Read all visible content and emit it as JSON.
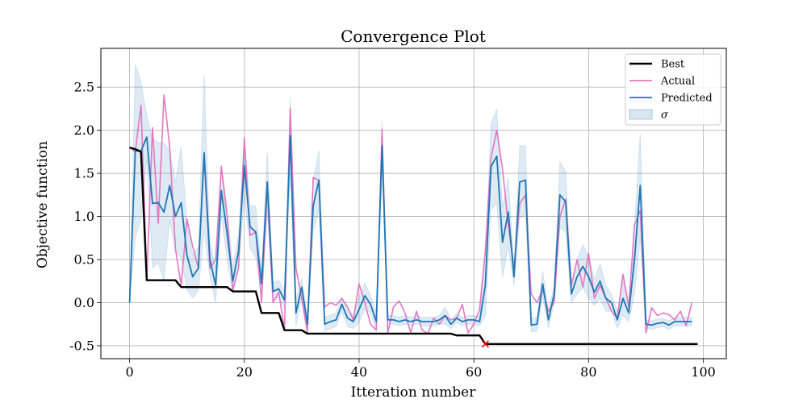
{
  "chart_data": {
    "type": "line",
    "title": "Convergence Plot",
    "xlabel": "Itteration number",
    "ylabel": "Objective function",
    "xlim": [
      -5,
      104
    ],
    "ylim": [
      -0.65,
      2.95
    ],
    "xticks": [
      0,
      20,
      40,
      60,
      80,
      100
    ],
    "yticks": [
      -0.5,
      0.0,
      0.5,
      1.0,
      1.5,
      2.0,
      2.5
    ],
    "grid": true,
    "legend_position": "upper right",
    "colors": {
      "best": "#000000",
      "actual": "#e377c2",
      "predicted": "#1f77b4",
      "sigma": "#1f77b4",
      "best_marker": "#ff0000"
    },
    "legend": [
      {
        "key": "best",
        "label": "Best",
        "kind": "line"
      },
      {
        "key": "actual",
        "label": "Actual",
        "kind": "line"
      },
      {
        "key": "predicted",
        "label": "Predicted",
        "kind": "line"
      },
      {
        "key": "sigma",
        "label": "σ",
        "kind": "patch"
      }
    ],
    "best_point": {
      "x": 62,
      "y": -0.48
    },
    "series": {
      "best": [
        1.8,
        1.78,
        1.75,
        0.26,
        0.26,
        0.26,
        0.26,
        0.26,
        0.26,
        0.18,
        0.18,
        0.18,
        0.18,
        0.18,
        0.18,
        0.18,
        0.18,
        0.18,
        0.13,
        0.13,
        0.13,
        0.13,
        0.13,
        -0.12,
        -0.12,
        -0.12,
        -0.12,
        -0.32,
        -0.32,
        -0.32,
        -0.32,
        -0.36,
        -0.36,
        -0.36,
        -0.36,
        -0.36,
        -0.36,
        -0.36,
        -0.36,
        -0.36,
        -0.36,
        -0.36,
        -0.36,
        -0.36,
        -0.36,
        -0.36,
        -0.36,
        -0.36,
        -0.36,
        -0.36,
        -0.36,
        -0.36,
        -0.36,
        -0.36,
        -0.36,
        -0.36,
        -0.36,
        -0.38,
        -0.38,
        -0.38,
        -0.38,
        -0.38,
        -0.48,
        -0.48,
        -0.48,
        -0.48,
        -0.48,
        -0.48,
        -0.48,
        -0.48,
        -0.48,
        -0.48,
        -0.48,
        -0.48,
        -0.48,
        -0.48,
        -0.48,
        -0.48,
        -0.48,
        -0.48,
        -0.48,
        -0.48,
        -0.48,
        -0.48,
        -0.48,
        -0.48,
        -0.48,
        -0.48,
        -0.48,
        -0.48,
        -0.48,
        -0.48,
        -0.48,
        -0.48,
        -0.48,
        -0.48,
        -0.48,
        -0.48,
        -0.48,
        -0.48
      ],
      "actual": [
        1.8,
        1.75,
        2.29,
        0.27,
        2.03,
        0.92,
        2.41,
        1.8,
        0.62,
        0.2,
        0.97,
        0.65,
        0.4,
        1.7,
        0.4,
        0.5,
        1.58,
        1.0,
        0.15,
        0.4,
        1.91,
        0.78,
        0.82,
        0.0,
        1.3,
        0.0,
        0.12,
        -0.32,
        2.26,
        0.4,
        0.05,
        -0.35,
        1.45,
        1.42,
        -0.05,
        0.0,
        -0.03,
        0.05,
        -0.05,
        -0.2,
        0.22,
        0.0,
        -0.25,
        -0.32,
        2.01,
        -0.35,
        -0.05,
        0.02,
        -0.12,
        -0.35,
        -0.1,
        -0.32,
        -0.36,
        -0.18,
        -0.25,
        -0.15,
        -0.2,
        -0.18,
        -0.02,
        -0.35,
        -0.25,
        -0.08,
        0.6,
        1.68,
        2.0,
        1.55,
        0.9,
        0.4,
        1.15,
        1.25,
        0.1,
        0.0,
        0.15,
        -0.1,
        0.0,
        1.0,
        1.2,
        0.2,
        0.5,
        0.18,
        0.57,
        0.05,
        0.2,
        0.05,
        -0.1,
        -0.18,
        0.33,
        -0.05,
        0.9,
        1.07,
        -0.35,
        -0.06,
        -0.15,
        -0.12,
        -0.14,
        -0.2,
        -0.1,
        -0.27,
        0.0
      ],
      "predicted": [
        0.0,
        1.76,
        1.76,
        1.92,
        1.15,
        1.16,
        1.05,
        1.36,
        1.0,
        1.16,
        0.55,
        0.3,
        0.4,
        1.74,
        0.5,
        0.2,
        1.3,
        0.8,
        0.25,
        0.6,
        1.59,
        0.88,
        0.82,
        0.22,
        1.4,
        0.13,
        0.16,
        0.03,
        1.94,
        -0.12,
        0.18,
        -0.25,
        1.12,
        1.42,
        -0.25,
        -0.22,
        -0.2,
        -0.02,
        -0.18,
        -0.22,
        -0.08,
        0.08,
        -0.02,
        -0.22,
        1.82,
        -0.2,
        -0.2,
        -0.22,
        -0.2,
        -0.22,
        -0.2,
        -0.22,
        -0.22,
        -0.22,
        -0.2,
        -0.15,
        -0.25,
        -0.18,
        -0.22,
        -0.2,
        -0.2,
        -0.22,
        0.2,
        1.58,
        1.7,
        0.7,
        1.05,
        0.3,
        1.4,
        1.42,
        -0.26,
        -0.25,
        0.22,
        -0.2,
        0.1,
        1.25,
        1.17,
        0.1,
        0.3,
        0.42,
        0.3,
        0.12,
        0.25,
        0.05,
        0.0,
        -0.2,
        0.05,
        -0.12,
        0.5,
        1.36,
        -0.25,
        -0.26,
        -0.24,
        -0.23,
        -0.26,
        -0.22,
        -0.22,
        -0.22,
        -0.22
      ],
      "sigma": [
        0.0,
        1.0,
        0.8,
        0.25,
        0.75,
        0.7,
        0.8,
        0.4,
        0.4,
        0.65,
        0.4,
        0.25,
        0.25,
        0.9,
        0.2,
        0.2,
        0.3,
        0.3,
        0.15,
        0.2,
        0.35,
        0.25,
        0.3,
        0.12,
        0.35,
        0.1,
        0.1,
        0.1,
        0.45,
        0.15,
        0.1,
        0.08,
        0.3,
        0.35,
        0.08,
        0.08,
        0.08,
        0.08,
        0.1,
        0.08,
        0.15,
        0.15,
        0.1,
        0.1,
        0.3,
        0.05,
        0.05,
        0.05,
        0.05,
        0.05,
        0.05,
        0.05,
        0.05,
        0.05,
        0.05,
        0.1,
        0.05,
        0.05,
        0.05,
        0.05,
        0.05,
        0.05,
        0.35,
        0.5,
        0.55,
        0.4,
        0.4,
        0.1,
        0.42,
        0.4,
        0.08,
        0.08,
        0.15,
        0.1,
        0.1,
        0.38,
        0.35,
        0.1,
        0.2,
        0.25,
        0.25,
        0.15,
        0.2,
        0.15,
        0.1,
        0.1,
        0.2,
        0.1,
        0.4,
        0.6,
        0.05,
        0.05,
        0.05,
        0.05,
        0.05,
        0.05,
        0.05,
        0.05,
        0.05
      ]
    }
  }
}
